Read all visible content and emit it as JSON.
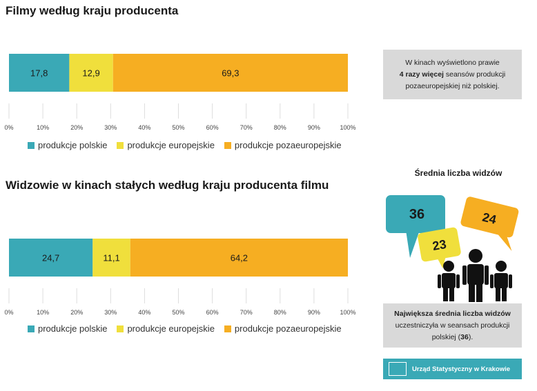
{
  "colors": {
    "polish": "#3aa9b6",
    "european": "#f0df3c",
    "non_european": "#f6ae22",
    "note_bg": "#d9d9d9"
  },
  "chart_data": [
    {
      "type": "bar",
      "stacked": true,
      "orientation": "horizontal",
      "title": "Filmy według kraju producenta",
      "xlim": [
        0,
        100
      ],
      "x_ticks": [
        "0%",
        "10%",
        "20%",
        "30%",
        "40%",
        "50%",
        "60%",
        "70%",
        "80%",
        "90%",
        "100%"
      ],
      "series": [
        {
          "name": "produkcje polskie",
          "values": [
            17.8
          ],
          "label": "17,8"
        },
        {
          "name": "produkcje europejskie",
          "values": [
            12.9
          ],
          "label": "12,9"
        },
        {
          "name": "produkcje pozaeuropejskie",
          "values": [
            69.3
          ],
          "label": "69,3"
        }
      ],
      "legend": "bottom",
      "grid": false
    },
    {
      "type": "bar",
      "stacked": true,
      "orientation": "horizontal",
      "title": "Widzowie w kinach stałych według kraju producenta filmu",
      "xlim": [
        0,
        100
      ],
      "x_ticks": [
        "0%",
        "10%",
        "20%",
        "30%",
        "40%",
        "50%",
        "60%",
        "70%",
        "80%",
        "90%",
        "100%"
      ],
      "series": [
        {
          "name": "produkcje polskie",
          "values": [
            24.7
          ],
          "label": "24,7"
        },
        {
          "name": "produkcje europejskie",
          "values": [
            11.1
          ],
          "label": "11,1"
        },
        {
          "name": "produkcje pozaeuropejskie",
          "values": [
            64.2
          ],
          "label": "64,2"
        }
      ],
      "legend": "bottom",
      "grid": false
    }
  ],
  "note1": {
    "line1": "W kinach wyświetlono prawie",
    "line2_bold": "4 razy więcej",
    "line2_rest": " seansów produkcji",
    "line3": "pozaeuropejskiej niż polskiej."
  },
  "average": {
    "title": "Średnia liczba widzów",
    "polish": "36",
    "european": "23",
    "non_european": "24"
  },
  "note2": {
    "line1": "Największa średnia liczba widzów",
    "line2": "uczestniczyła w seansach produkcji",
    "line3_start": "polskiej (",
    "line3_bold": "36",
    "line3_end": ")."
  },
  "footer": {
    "text": "Urząd Statystyczny w Krakowie"
  }
}
